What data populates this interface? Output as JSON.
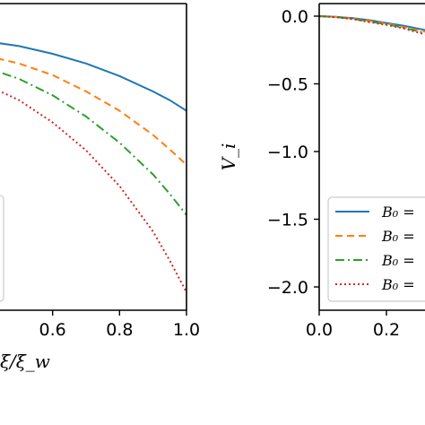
{
  "chart_data": [
    {
      "type": "line",
      "xlabel": "ξ/ξ_w",
      "xlim": [
        0.4,
        1.0
      ],
      "x_ticks": [
        "0.6",
        "0.8",
        "1.0"
      ],
      "x_tick_values": [
        0.6,
        0.8,
        1.0
      ],
      "series": [
        {
          "color": "#1f77b4",
          "dash": "solid",
          "x": [
            0.4,
            0.5,
            0.6,
            0.7,
            0.8,
            0.9,
            0.95,
            1.0
          ],
          "y": [
            -0.35,
            -0.4,
            -0.48,
            -0.58,
            -0.71,
            -0.87,
            -0.96,
            -1.07
          ]
        },
        {
          "color": "#ff7f0e",
          "dash": "dashed",
          "x": [
            0.4,
            0.5,
            0.6,
            0.7,
            0.8,
            0.9,
            0.95,
            1.0
          ],
          "y": [
            -0.5,
            -0.58,
            -0.7,
            -0.87,
            -1.07,
            -1.32,
            -1.47,
            -1.63
          ]
        },
        {
          "color": "#2ca02c",
          "dash": "dashdot",
          "x": [
            0.4,
            0.5,
            0.6,
            0.7,
            0.8,
            0.9,
            0.95,
            1.0
          ],
          "y": [
            -0.62,
            -0.74,
            -0.91,
            -1.13,
            -1.4,
            -1.73,
            -1.93,
            -2.15
          ]
        },
        {
          "color": "#d62728",
          "dash": "dotted",
          "x": [
            0.4,
            0.5,
            0.6,
            0.7,
            0.8,
            0.9,
            0.95,
            1.0
          ],
          "y": [
            -0.8,
            -0.96,
            -1.19,
            -1.48,
            -1.85,
            -2.32,
            -2.62,
            -2.95
          ]
        }
      ]
    },
    {
      "type": "line",
      "ylabel": "V_i",
      "xlim": [
        0.0,
        0.8
      ],
      "ylim": [
        -2.2,
        0.1
      ],
      "x_ticks": [
        "0.0",
        "0.2"
      ],
      "x_tick_values": [
        0.0,
        0.2
      ],
      "y_ticks": [
        "0.0",
        "−0.5",
        "−1.0",
        "−1.5",
        "−2.0"
      ],
      "y_tick_values": [
        0.0,
        -0.5,
        -1.0,
        -1.5,
        -2.0
      ],
      "legend_position": "lower-right",
      "legend": [
        {
          "label": "B₀ =",
          "color": "#1f77b4",
          "dash": "solid"
        },
        {
          "label": "B₀ =",
          "color": "#ff7f0e",
          "dash": "dashed"
        },
        {
          "label": "B₀ =",
          "color": "#2ca02c",
          "dash": "dashdot"
        },
        {
          "label": "B₀ =",
          "color": "#d62728",
          "dash": "dotted"
        }
      ],
      "series": [
        {
          "color": "#1f77b4",
          "dash": "solid",
          "x": [
            0.0,
            0.05,
            0.1,
            0.15,
            0.2,
            0.25,
            0.3,
            0.4
          ],
          "y": [
            0.0,
            -0.005,
            -0.015,
            -0.03,
            -0.05,
            -0.07,
            -0.095,
            -0.15
          ]
        },
        {
          "color": "#ff7f0e",
          "dash": "dashed",
          "x": [
            0.0,
            0.05,
            0.1,
            0.15,
            0.2,
            0.25,
            0.3,
            0.4
          ],
          "y": [
            0.0,
            -0.006,
            -0.018,
            -0.035,
            -0.055,
            -0.08,
            -0.105,
            -0.17
          ]
        },
        {
          "color": "#2ca02c",
          "dash": "dashdot",
          "x": [
            0.0,
            0.05,
            0.1,
            0.15,
            0.2,
            0.25,
            0.3,
            0.4
          ],
          "y": [
            0.0,
            -0.007,
            -0.02,
            -0.04,
            -0.06,
            -0.085,
            -0.115,
            -0.18
          ]
        },
        {
          "color": "#d62728",
          "dash": "dotted",
          "x": [
            0.0,
            0.05,
            0.1,
            0.15,
            0.2,
            0.25,
            0.3,
            0.4
          ],
          "y": [
            0.0,
            -0.008,
            -0.022,
            -0.045,
            -0.065,
            -0.09,
            -0.125,
            -0.19
          ]
        }
      ]
    }
  ]
}
